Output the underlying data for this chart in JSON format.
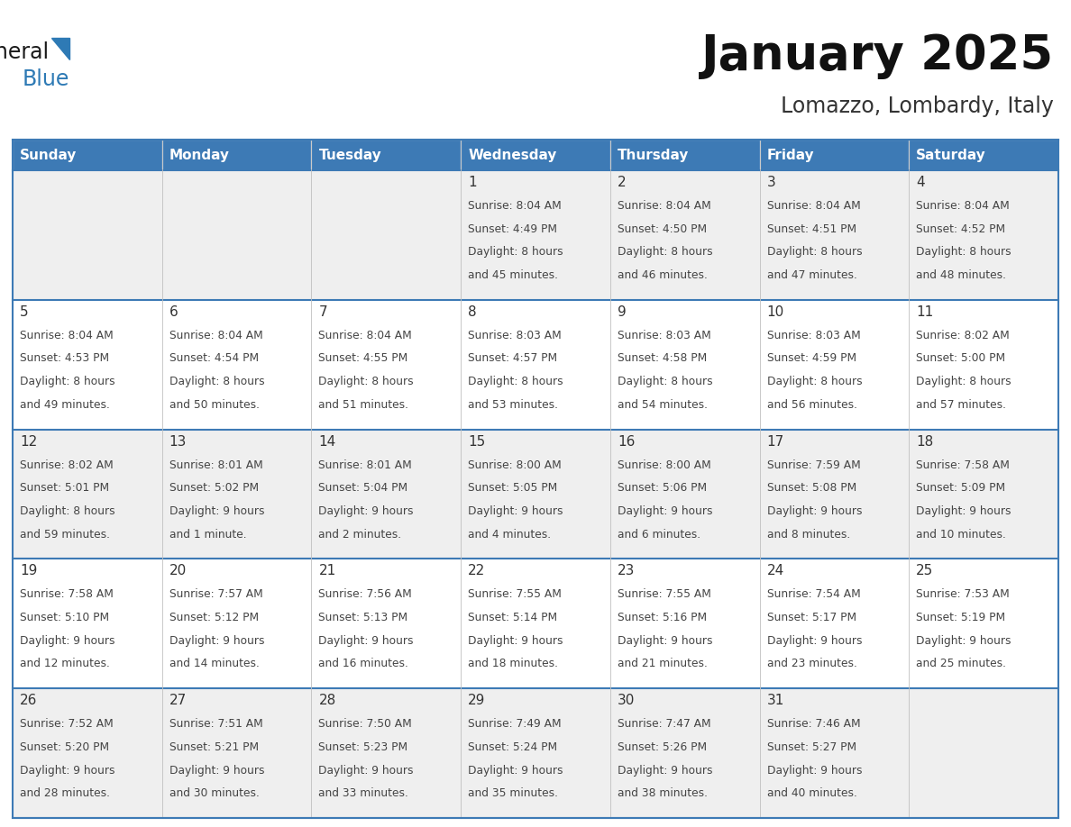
{
  "title": "January 2025",
  "subtitle": "Lomazzo, Lombardy, Italy",
  "header_color": "#3d7ab5",
  "header_text_color": "#ffffff",
  "day_names": [
    "Sunday",
    "Monday",
    "Tuesday",
    "Wednesday",
    "Thursday",
    "Friday",
    "Saturday"
  ],
  "cell_bg_even": "#efefef",
  "cell_bg_odd": "#ffffff",
  "cell_border_color": "#3d7ab5",
  "text_color": "#444444",
  "day_num_color": "#333333",
  "logo_color": "#1a1a1a",
  "logo_blue_color": "#2e7ab5",
  "days_data": [
    {
      "day": 1,
      "col": 3,
      "row": 0,
      "sunrise": "8:04 AM",
      "sunset": "4:49 PM",
      "daylight": "8 hours and 45 minutes."
    },
    {
      "day": 2,
      "col": 4,
      "row": 0,
      "sunrise": "8:04 AM",
      "sunset": "4:50 PM",
      "daylight": "8 hours and 46 minutes."
    },
    {
      "day": 3,
      "col": 5,
      "row": 0,
      "sunrise": "8:04 AM",
      "sunset": "4:51 PM",
      "daylight": "8 hours and 47 minutes."
    },
    {
      "day": 4,
      "col": 6,
      "row": 0,
      "sunrise": "8:04 AM",
      "sunset": "4:52 PM",
      "daylight": "8 hours and 48 minutes."
    },
    {
      "day": 5,
      "col": 0,
      "row": 1,
      "sunrise": "8:04 AM",
      "sunset": "4:53 PM",
      "daylight": "8 hours and 49 minutes."
    },
    {
      "day": 6,
      "col": 1,
      "row": 1,
      "sunrise": "8:04 AM",
      "sunset": "4:54 PM",
      "daylight": "8 hours and 50 minutes."
    },
    {
      "day": 7,
      "col": 2,
      "row": 1,
      "sunrise": "8:04 AM",
      "sunset": "4:55 PM",
      "daylight": "8 hours and 51 minutes."
    },
    {
      "day": 8,
      "col": 3,
      "row": 1,
      "sunrise": "8:03 AM",
      "sunset": "4:57 PM",
      "daylight": "8 hours and 53 minutes."
    },
    {
      "day": 9,
      "col": 4,
      "row": 1,
      "sunrise": "8:03 AM",
      "sunset": "4:58 PM",
      "daylight": "8 hours and 54 minutes."
    },
    {
      "day": 10,
      "col": 5,
      "row": 1,
      "sunrise": "8:03 AM",
      "sunset": "4:59 PM",
      "daylight": "8 hours and 56 minutes."
    },
    {
      "day": 11,
      "col": 6,
      "row": 1,
      "sunrise": "8:02 AM",
      "sunset": "5:00 PM",
      "daylight": "8 hours and 57 minutes."
    },
    {
      "day": 12,
      "col": 0,
      "row": 2,
      "sunrise": "8:02 AM",
      "sunset": "5:01 PM",
      "daylight": "8 hours and 59 minutes."
    },
    {
      "day": 13,
      "col": 1,
      "row": 2,
      "sunrise": "8:01 AM",
      "sunset": "5:02 PM",
      "daylight": "9 hours and 1 minute."
    },
    {
      "day": 14,
      "col": 2,
      "row": 2,
      "sunrise": "8:01 AM",
      "sunset": "5:04 PM",
      "daylight": "9 hours and 2 minutes."
    },
    {
      "day": 15,
      "col": 3,
      "row": 2,
      "sunrise": "8:00 AM",
      "sunset": "5:05 PM",
      "daylight": "9 hours and 4 minutes."
    },
    {
      "day": 16,
      "col": 4,
      "row": 2,
      "sunrise": "8:00 AM",
      "sunset": "5:06 PM",
      "daylight": "9 hours and 6 minutes."
    },
    {
      "day": 17,
      "col": 5,
      "row": 2,
      "sunrise": "7:59 AM",
      "sunset": "5:08 PM",
      "daylight": "9 hours and 8 minutes."
    },
    {
      "day": 18,
      "col": 6,
      "row": 2,
      "sunrise": "7:58 AM",
      "sunset": "5:09 PM",
      "daylight": "9 hours and 10 minutes."
    },
    {
      "day": 19,
      "col": 0,
      "row": 3,
      "sunrise": "7:58 AM",
      "sunset": "5:10 PM",
      "daylight": "9 hours and 12 minutes."
    },
    {
      "day": 20,
      "col": 1,
      "row": 3,
      "sunrise": "7:57 AM",
      "sunset": "5:12 PM",
      "daylight": "9 hours and 14 minutes."
    },
    {
      "day": 21,
      "col": 2,
      "row": 3,
      "sunrise": "7:56 AM",
      "sunset": "5:13 PM",
      "daylight": "9 hours and 16 minutes."
    },
    {
      "day": 22,
      "col": 3,
      "row": 3,
      "sunrise": "7:55 AM",
      "sunset": "5:14 PM",
      "daylight": "9 hours and 18 minutes."
    },
    {
      "day": 23,
      "col": 4,
      "row": 3,
      "sunrise": "7:55 AM",
      "sunset": "5:16 PM",
      "daylight": "9 hours and 21 minutes."
    },
    {
      "day": 24,
      "col": 5,
      "row": 3,
      "sunrise": "7:54 AM",
      "sunset": "5:17 PM",
      "daylight": "9 hours and 23 minutes."
    },
    {
      "day": 25,
      "col": 6,
      "row": 3,
      "sunrise": "7:53 AM",
      "sunset": "5:19 PM",
      "daylight": "9 hours and 25 minutes."
    },
    {
      "day": 26,
      "col": 0,
      "row": 4,
      "sunrise": "7:52 AM",
      "sunset": "5:20 PM",
      "daylight": "9 hours and 28 minutes."
    },
    {
      "day": 27,
      "col": 1,
      "row": 4,
      "sunrise": "7:51 AM",
      "sunset": "5:21 PM",
      "daylight": "9 hours and 30 minutes."
    },
    {
      "day": 28,
      "col": 2,
      "row": 4,
      "sunrise": "7:50 AM",
      "sunset": "5:23 PM",
      "daylight": "9 hours and 33 minutes."
    },
    {
      "day": 29,
      "col": 3,
      "row": 4,
      "sunrise": "7:49 AM",
      "sunset": "5:24 PM",
      "daylight": "9 hours and 35 minutes."
    },
    {
      "day": 30,
      "col": 4,
      "row": 4,
      "sunrise": "7:47 AM",
      "sunset": "5:26 PM",
      "daylight": "9 hours and 38 minutes."
    },
    {
      "day": 31,
      "col": 5,
      "row": 4,
      "sunrise": "7:46 AM",
      "sunset": "5:27 PM",
      "daylight": "9 hours and 40 minutes."
    }
  ]
}
